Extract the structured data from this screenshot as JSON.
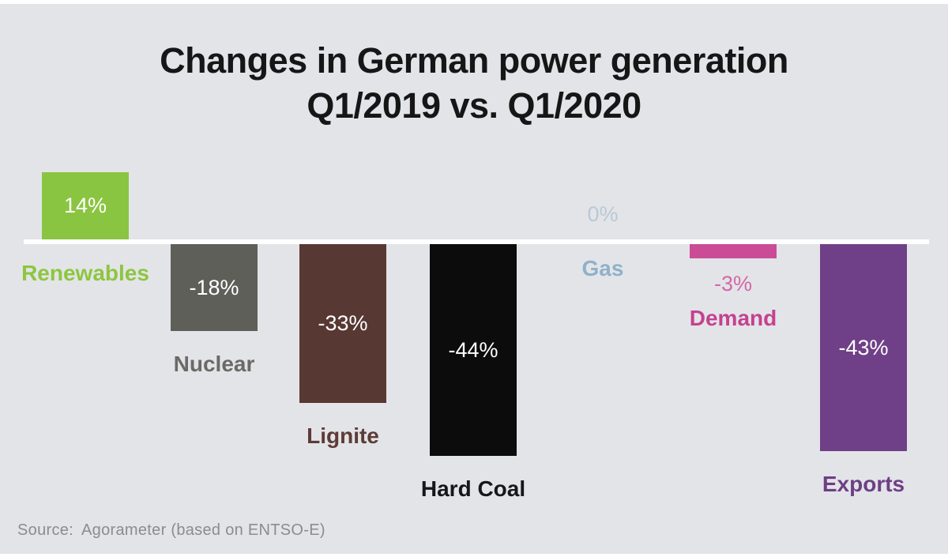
{
  "title": {
    "line1": "Changes in German power generation",
    "line2": "Q1/2019 vs. Q1/2020"
  },
  "source": {
    "label": "Source:",
    "text": "Agorameter (based on ENTSO-E)"
  },
  "colors": {
    "page_background": "#ffffff",
    "chart_background": "#e3e4e8",
    "baseline": "#ffffff",
    "title_text": "#161616",
    "source_text": "#8b8b92"
  },
  "chart_data": {
    "type": "bar",
    "title": "Changes in German power generation Q1/2019 vs. Q1/2020",
    "unit": "%",
    "ylabel": "",
    "xlabel": "",
    "baseline_value": 0,
    "grid": false,
    "legend": false,
    "categories": [
      "Renewables",
      "Nuclear",
      "Lignite",
      "Hard Coal",
      "Gas",
      "Demand",
      "Exports"
    ],
    "values": [
      14,
      -18,
      -33,
      -44,
      0,
      -3,
      -43
    ],
    "items": [
      {
        "label": "Renewables",
        "value": 14,
        "value_label": "14%",
        "bar_color": "#8ac541",
        "label_color": "#8dc63f",
        "value_color": "#ffffff"
      },
      {
        "label": "Nuclear",
        "value": -18,
        "value_label": "-18%",
        "bar_color": "#5f5f5a",
        "label_color": "#6b6a66",
        "value_color": "#ffffff"
      },
      {
        "label": "Lignite",
        "value": -33,
        "value_label": "-33%",
        "bar_color": "#583833",
        "label_color": "#5d3c37",
        "value_color": "#ffffff"
      },
      {
        "label": "Hard Coal",
        "value": -44,
        "value_label": "-44%",
        "bar_color": "#0c0c0c",
        "label_color": "#17171a",
        "value_color": "#ffffff"
      },
      {
        "label": "Gas",
        "value": 0,
        "value_label": "0%",
        "bar_color": null,
        "label_color": "#8fb2c9",
        "value_color": "#b9c9d6"
      },
      {
        "label": "Demand",
        "value": -3,
        "value_label": "-3%",
        "bar_color": "#ca4c96",
        "label_color": "#c5418f",
        "value_color": "#d268a8"
      },
      {
        "label": "Exports",
        "value": -43,
        "value_label": "-43%",
        "bar_color": "#6f4087",
        "label_color": "#6d3f85",
        "value_color": "#ffffff"
      }
    ]
  }
}
